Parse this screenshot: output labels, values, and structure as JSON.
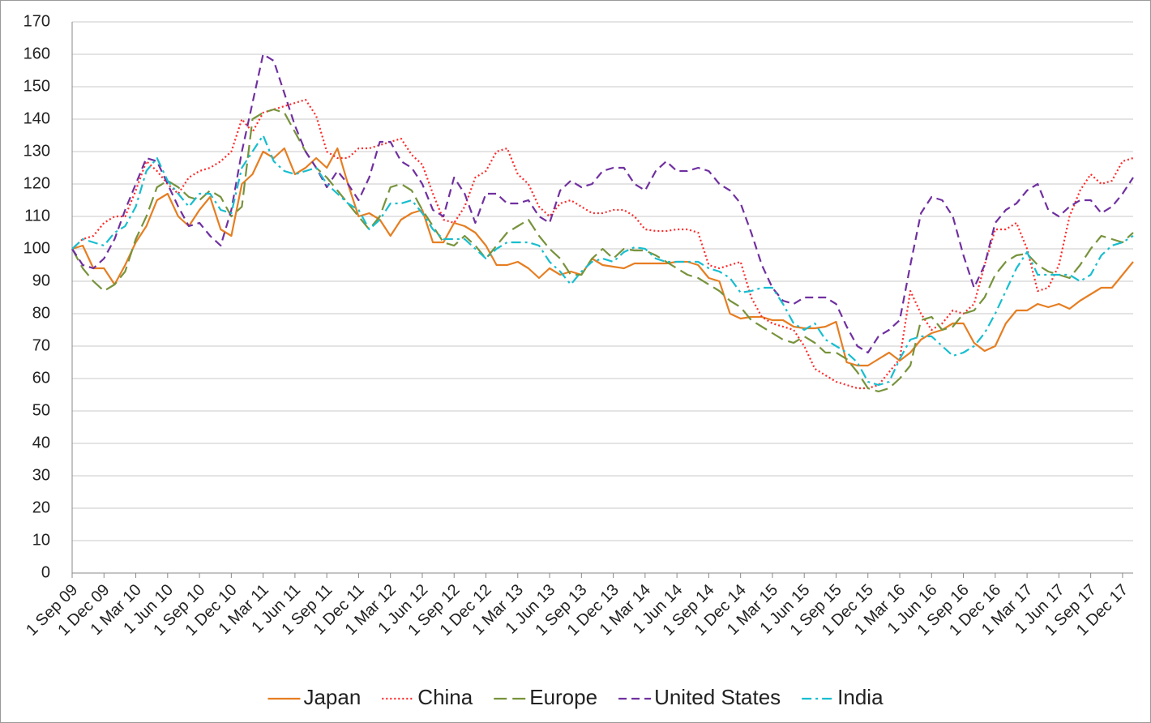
{
  "chart_data": {
    "type": "line",
    "categories": [
      "1 Sep 09",
      null,
      null,
      "1 Dec 09",
      null,
      null,
      "1 Mar 10",
      null,
      null,
      "1 Jun 10",
      null,
      null,
      "1 Sep 10",
      null,
      null,
      "1 Dec 10",
      null,
      null,
      "1 Mar 11",
      null,
      null,
      "1 Jun 11",
      null,
      null,
      "1 Sep 11",
      null,
      null,
      "1 Dec 11",
      null,
      null,
      "1 Mar 12",
      null,
      null,
      "1 Jun 12",
      null,
      null,
      "1 Sep 12",
      null,
      null,
      "1 Dec 12",
      null,
      null,
      "1 Mar 13",
      null,
      null,
      "1 Jun 13",
      null,
      null,
      "1 Sep 13",
      null,
      null,
      "1 Dec 13",
      null,
      null,
      "1 Mar 14",
      null,
      null,
      "1 Jun 14",
      null,
      null,
      "1 Sep 14",
      null,
      null,
      "1 Dec 14",
      null,
      null,
      "1 Mar 15",
      null,
      null,
      "1 Jun 15",
      null,
      null,
      "1 Sep 15",
      null,
      null,
      "1 Dec 15",
      null,
      null,
      "1 Mar 16",
      null,
      null,
      "1 Jun 16",
      null,
      null,
      "1 Sep 16",
      null,
      null,
      "1 Dec 16",
      null,
      null,
      "1 Mar 17",
      null,
      null,
      "1 Jun 17",
      null,
      null,
      "1 Sep 17",
      null,
      null,
      "1 Dec 17",
      null
    ],
    "series": [
      {
        "name": "Japan",
        "color": "#e67e22",
        "linestyle": "solid",
        "values": [
          100,
          101,
          94,
          94,
          89,
          95,
          102,
          107,
          115,
          117,
          110,
          107,
          112,
          116,
          106,
          104,
          120,
          123,
          130,
          128,
          131,
          123,
          125,
          128,
          125,
          131,
          120,
          110,
          111,
          109,
          104,
          109,
          111,
          112,
          102,
          102,
          108,
          107,
          105,
          101,
          95,
          95,
          96,
          94,
          91,
          94,
          92,
          93,
          92,
          97,
          95,
          94.5,
          94,
          95.5,
          95.5,
          95.5,
          95.5,
          96,
          96,
          95,
          91,
          90,
          80,
          78.5,
          79,
          79,
          78,
          78,
          76,
          75.5,
          75.5,
          76,
          77.5,
          65,
          64,
          64,
          66,
          68,
          65.5,
          68,
          72,
          74,
          75,
          77,
          77,
          71,
          68.5,
          70,
          77,
          81,
          81,
          83,
          82,
          83,
          81.5,
          84,
          86,
          88,
          88,
          92,
          96
        ]
      },
      {
        "name": "China",
        "color": "#ff2a2a",
        "linestyle": "dotted",
        "values": [
          100,
          103,
          104,
          108,
          110,
          110,
          118,
          127,
          124,
          120,
          117,
          122,
          124,
          125,
          127,
          130,
          140,
          136,
          142,
          143,
          144,
          145,
          146,
          141,
          130,
          128,
          128,
          131,
          131,
          132,
          133,
          134,
          129,
          126,
          117,
          109,
          108,
          113,
          122,
          124,
          130,
          131,
          123,
          120,
          113,
          110,
          114,
          115,
          113,
          111,
          111,
          112,
          112,
          110,
          106,
          105.5,
          105.5,
          106,
          106,
          105,
          95,
          94,
          95,
          96,
          85,
          79,
          77,
          76,
          75,
          70,
          63,
          61,
          59,
          58,
          57,
          57,
          58,
          62,
          66,
          87,
          80,
          75,
          77,
          81,
          80,
          83,
          95,
          106,
          106,
          108,
          100,
          87,
          88,
          95,
          110,
          118,
          123,
          120,
          121,
          127,
          128
        ]
      },
      {
        "name": "Europe",
        "color": "#77933c",
        "linestyle": "longdash",
        "values": [
          100,
          94,
          90,
          87,
          89,
          93,
          103,
          110,
          119,
          121,
          119,
          116,
          115,
          118,
          116,
          110,
          113,
          140,
          142,
          143,
          142,
          136,
          130,
          125,
          122,
          118,
          114,
          110,
          106,
          110,
          119,
          120,
          118,
          112,
          107,
          102,
          101,
          104,
          101,
          97,
          101,
          105,
          107,
          109,
          104,
          100,
          97,
          92,
          92,
          97,
          100,
          97,
          100,
          99.5,
          99.5,
          98,
          96,
          94,
          92,
          91,
          89,
          87,
          84,
          82,
          78,
          76,
          74,
          72,
          71,
          73,
          71,
          68,
          68,
          66,
          62,
          57,
          56,
          57,
          60,
          64,
          78,
          79,
          75,
          76,
          80,
          81,
          85,
          92,
          96,
          98,
          98.5,
          95,
          93,
          92,
          91,
          95,
          100,
          104,
          103,
          102,
          105
        ]
      },
      {
        "name": "United States",
        "color": "#7030a0",
        "linestyle": "dash",
        "values": [
          100,
          95,
          94,
          97,
          103,
          112,
          120,
          128,
          127,
          120,
          113,
          107,
          108,
          104,
          101,
          112,
          130,
          145,
          160,
          158,
          148,
          138,
          130,
          125,
          119,
          124,
          120,
          115,
          122,
          133,
          133,
          127,
          125,
          120,
          112,
          110,
          122,
          117,
          108,
          117,
          117,
          114,
          114,
          115,
          110,
          108,
          118,
          121,
          119,
          120,
          124,
          125,
          125,
          120,
          118,
          124,
          127,
          124,
          124,
          125,
          124,
          120,
          118,
          114,
          105,
          95,
          88,
          84,
          83,
          85,
          85,
          85,
          83,
          76,
          70,
          68,
          73,
          75,
          78,
          95,
          111,
          116,
          115,
          110,
          98,
          88,
          95,
          108,
          112,
          114,
          118,
          120,
          112,
          110,
          113,
          115,
          115,
          111,
          113,
          117,
          122
        ]
      },
      {
        "name": "India",
        "color": "#17becf",
        "linestyle": "dashdot",
        "values": [
          100,
          103,
          102,
          101,
          105,
          107,
          113,
          124,
          128,
          121,
          117,
          113,
          117,
          117,
          112,
          111,
          125,
          130,
          135,
          127,
          124,
          123,
          124,
          125,
          120,
          117,
          114,
          112,
          106,
          109,
          114,
          114,
          115,
          111,
          106,
          103,
          103,
          103,
          100,
          97,
          100,
          102,
          102,
          102,
          101,
          96,
          93,
          89,
          93,
          96,
          97,
          96,
          99,
          100.5,
          100,
          97,
          96,
          96,
          96,
          96,
          94,
          93,
          91,
          86.5,
          87,
          88,
          88,
          83,
          77,
          75,
          77,
          72,
          70,
          68,
          65,
          59,
          58,
          59,
          66,
          72,
          73,
          73,
          70,
          67,
          68,
          70,
          74,
          80,
          87,
          94,
          99,
          92,
          92,
          92,
          92,
          90,
          92,
          98,
          101,
          102,
          104
        ]
      }
    ],
    "ylim": [
      0,
      170
    ],
    "yticks": [
      0,
      10,
      20,
      30,
      40,
      50,
      60,
      70,
      80,
      90,
      100,
      110,
      120,
      130,
      140,
      150,
      160,
      170
    ],
    "grid": true,
    "legend": "bottom"
  }
}
